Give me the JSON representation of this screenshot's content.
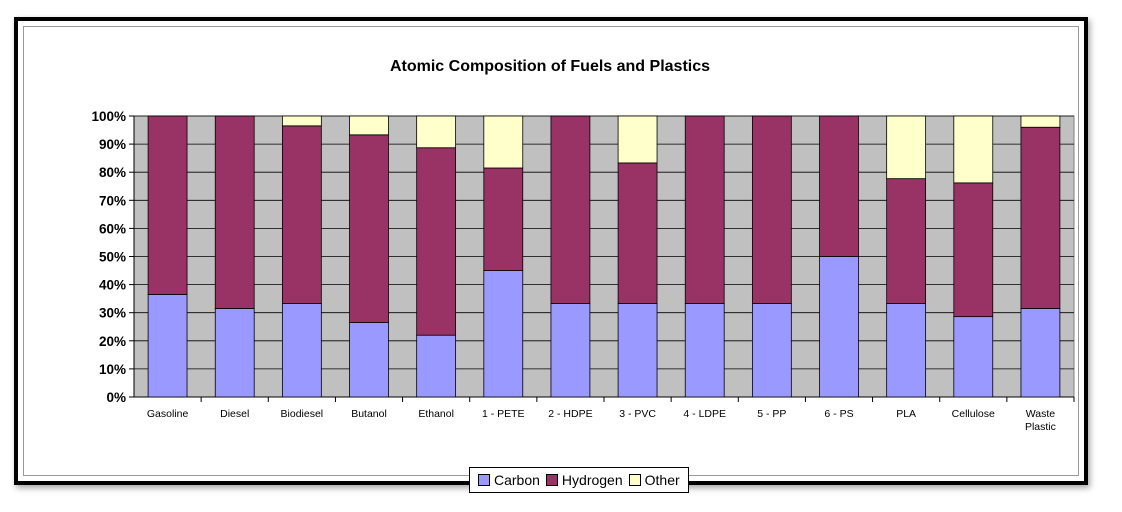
{
  "chart_data": {
    "type": "bar",
    "stacked": true,
    "title": "Atomic Composition of Fuels and Plastics",
    "xlabel": "",
    "ylabel": "",
    "ylim": [
      0,
      100
    ],
    "yticks": [
      "0%",
      "10%",
      "20%",
      "30%",
      "40%",
      "50%",
      "60%",
      "70%",
      "80%",
      "90%",
      "100%"
    ],
    "grid": true,
    "legend_position": "bottom",
    "categories": [
      [
        "Gasoline"
      ],
      [
        "Diesel"
      ],
      [
        "Biodiesel"
      ],
      [
        "Butanol"
      ],
      [
        "Ethanol"
      ],
      [
        "1 - PETE"
      ],
      [
        "2 - HDPE"
      ],
      [
        "3 - PVC"
      ],
      [
        "4 - LDPE"
      ],
      [
        "5 - PP"
      ],
      [
        "6 - PS"
      ],
      [
        "PLA"
      ],
      [
        "Cellulose"
      ],
      [
        "Waste",
        "Plastic"
      ]
    ],
    "series": [
      {
        "name": "Carbon",
        "color": "#9999ff",
        "values": [
          36.5,
          31.5,
          33.3,
          26.5,
          22,
          45,
          33.3,
          33.3,
          33.3,
          33.3,
          50,
          33.3,
          28.6,
          31.5
        ]
      },
      {
        "name": "Hydrogen",
        "color": "#993366",
        "values": [
          63.5,
          68.5,
          63.2,
          66.8,
          66.7,
          36.5,
          66.7,
          50,
          66.7,
          66.7,
          50,
          44.4,
          47.6,
          64.5
        ]
      },
      {
        "name": "Other",
        "color": "#ffffcc",
        "values": [
          0,
          0,
          3.5,
          6.7,
          11.3,
          18.5,
          0,
          16.7,
          0,
          0,
          0,
          22.3,
          23.8,
          4
        ]
      }
    ],
    "plot_background": "#c0c0c0"
  }
}
